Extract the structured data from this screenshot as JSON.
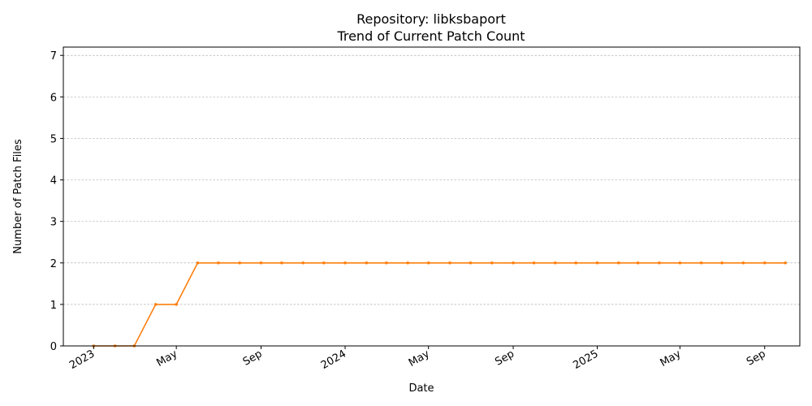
{
  "chart_data": {
    "type": "line",
    "title": "Repository: libksbaport",
    "subtitle": "Trend of Current Patch Count",
    "xlabel": "Date",
    "ylabel": "Number of Patch Files",
    "ylim": [
      0,
      7.2
    ],
    "yticks": [
      0,
      1,
      2,
      3,
      4,
      5,
      6,
      7
    ],
    "xlim": [
      "2022-11-18",
      "2025-10-22"
    ],
    "xticks": [
      {
        "date": "2023-01-01",
        "label": "2023"
      },
      {
        "date": "2023-05-01",
        "label": "May"
      },
      {
        "date": "2023-09-01",
        "label": "Sep"
      },
      {
        "date": "2024-01-01",
        "label": "2024"
      },
      {
        "date": "2024-05-01",
        "label": "May"
      },
      {
        "date": "2024-09-01",
        "label": "Sep"
      },
      {
        "date": "2025-01-01",
        "label": "2025"
      },
      {
        "date": "2025-05-01",
        "label": "May"
      },
      {
        "date": "2025-09-01",
        "label": "Sep"
      }
    ],
    "grid": "y-dashed",
    "series": [
      {
        "color": "#ff7f0e",
        "x": [
          "2023-01-01",
          "2023-02-01",
          "2023-03-01",
          "2023-04-01",
          "2023-05-01",
          "2023-06-01",
          "2023-07-01",
          "2023-08-01",
          "2023-09-01",
          "2023-10-01",
          "2023-11-01",
          "2023-12-01",
          "2024-01-01",
          "2024-02-01",
          "2024-03-01",
          "2024-04-01",
          "2024-05-01",
          "2024-06-01",
          "2024-07-01",
          "2024-08-01",
          "2024-09-01",
          "2024-10-01",
          "2024-11-01",
          "2024-12-01",
          "2025-01-01",
          "2025-02-01",
          "2025-03-01",
          "2025-04-01",
          "2025-05-01",
          "2025-06-01",
          "2025-07-01",
          "2025-08-01",
          "2025-09-01",
          "2025-10-01"
        ],
        "values": [
          0,
          0,
          0,
          1,
          1,
          2,
          2,
          2,
          2,
          2,
          2,
          2,
          2,
          2,
          2,
          2,
          2,
          2,
          2,
          2,
          2,
          2,
          2,
          2,
          2,
          2,
          2,
          2,
          2,
          2,
          2,
          2,
          2,
          2
        ]
      }
    ]
  }
}
